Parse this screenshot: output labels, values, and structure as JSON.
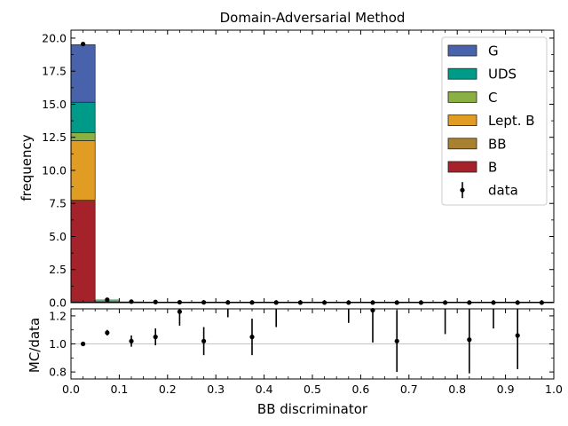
{
  "chart_data": {
    "type": "bar",
    "stacked": true,
    "title": "Domain-Adversarial Method",
    "xlabel": "BB discriminator",
    "ylabel": "frequency",
    "ratio_ylabel": "MC/data",
    "xlim": [
      0.0,
      1.0
    ],
    "ylim": [
      0,
      20.6
    ],
    "ratio_ylim": [
      0.75,
      1.25
    ],
    "grid": false,
    "legend_position": "top-right",
    "bin_edges": [
      0.0,
      0.05,
      0.1,
      0.15,
      0.2,
      0.25,
      0.3,
      0.35,
      0.4,
      0.45,
      0.5,
      0.55,
      0.6,
      0.65,
      0.7,
      0.75,
      0.8,
      0.85,
      0.9,
      0.95,
      1.0
    ],
    "x_ticks": [
      "0.0",
      "0.1",
      "0.2",
      "0.3",
      "0.4",
      "0.5",
      "0.6",
      "0.7",
      "0.8",
      "0.9",
      "1.0"
    ],
    "y_ticks": [
      "0.0",
      "2.5",
      "5.0",
      "7.5",
      "10.0",
      "12.5",
      "15.0",
      "17.5",
      "20.0"
    ],
    "ratio_y_ticks": [
      "0.8",
      "1.0",
      "1.2"
    ],
    "series": [
      {
        "name": "B",
        "color": "#a6222a",
        "values": [
          7.7,
          0.09,
          0.03,
          0.02,
          0.01,
          0.005,
          0.004,
          0.003,
          0.002,
          0.002,
          0.001,
          0.001,
          0.001,
          0.001,
          0.001,
          0.001,
          0.001,
          0.001,
          0.001,
          0.001
        ]
      },
      {
        "name": "BB",
        "color": "#a88231",
        "values": [
          0.05,
          0.01,
          0.005,
          0.004,
          0.003,
          0.002,
          0.002,
          0.001,
          0.001,
          0.001,
          0.001,
          0.001,
          0.001,
          0.001,
          0.001,
          0.001,
          0.001,
          0.001,
          0.001,
          0.001
        ]
      },
      {
        "name": "Lept. B",
        "color": "#e19c24",
        "values": [
          4.5,
          0.05,
          0.02,
          0.012,
          0.008,
          0.004,
          0.003,
          0.002,
          0.002,
          0.001,
          0.001,
          0.001,
          0.001,
          0.001,
          0.001,
          0.001,
          0.001,
          0.001,
          0.001,
          0.001
        ]
      },
      {
        "name": "C",
        "color": "#8ab043",
        "values": [
          0.6,
          0.02,
          0.01,
          0.006,
          0.004,
          0.002,
          0.002,
          0.001,
          0.001,
          0.001,
          0.001,
          0.001,
          0.001,
          0.001,
          0.001,
          0.001,
          0.001,
          0.001,
          0.001,
          0.001
        ]
      },
      {
        "name": "UDS",
        "color": "#009b88",
        "values": [
          2.3,
          0.03,
          0.01,
          0.006,
          0.004,
          0.002,
          0.002,
          0.001,
          0.001,
          0.001,
          0.001,
          0.001,
          0.001,
          0.001,
          0.001,
          0.001,
          0.001,
          0.001,
          0.001,
          0.001
        ]
      },
      {
        "name": "G",
        "color": "#4862ac",
        "values": [
          4.35,
          0.03,
          0.01,
          0.006,
          0.004,
          0.002,
          0.002,
          0.001,
          0.001,
          0.001,
          0.001,
          0.001,
          0.001,
          0.001,
          0.001,
          0.001,
          0.001,
          0.001,
          0.001,
          0.001
        ]
      }
    ],
    "data": {
      "name": "data",
      "x": [
        0.025,
        0.075,
        0.125,
        0.175,
        0.225,
        0.275,
        0.325,
        0.375,
        0.425,
        0.475,
        0.525,
        0.575,
        0.625,
        0.675,
        0.725,
        0.775,
        0.825,
        0.875,
        0.925,
        0.975
      ],
      "y": [
        19.55,
        0.22,
        0.08,
        0.05,
        0.03,
        0.02,
        0.015,
        0.012,
        0.01,
        0.008,
        0.006,
        0.005,
        0.005,
        0.004,
        0.004,
        0.003,
        0.003,
        0.003,
        0.002,
        0.002
      ]
    },
    "ratio": {
      "x": [
        0.025,
        0.075,
        0.125,
        0.175,
        0.225,
        0.275,
        0.325,
        0.375,
        0.425,
        0.475,
        0.525,
        0.575,
        0.625,
        0.675,
        0.725,
        0.775,
        0.825,
        0.875,
        0.925,
        0.975
      ],
      "y": [
        1.0,
        1.08,
        1.02,
        1.05,
        1.23,
        1.02,
        null,
        1.05,
        null,
        null,
        null,
        null,
        1.24,
        1.02,
        null,
        null,
        1.03,
        null,
        1.06,
        null
      ],
      "err_low": [
        0.0,
        0.02,
        0.04,
        0.06,
        0.1,
        0.1,
        null,
        0.13,
        null,
        null,
        null,
        null,
        0.23,
        0.22,
        null,
        null,
        0.24,
        null,
        0.24,
        null
      ],
      "err_high": [
        0.0,
        0.02,
        0.04,
        0.06,
        0.1,
        0.1,
        null,
        0.13,
        null,
        null,
        null,
        null,
        0.23,
        0.22,
        null,
        null,
        0.24,
        null,
        0.24,
        null
      ],
      "segments": [
        {
          "x": 0.325,
          "y0": 1.19,
          "y1": 1.25
        },
        {
          "x": 0.425,
          "y0": 1.12,
          "y1": 1.25
        },
        {
          "x": 0.575,
          "y0": 1.15,
          "y1": 1.25
        },
        {
          "x": 0.775,
          "y0": 1.07,
          "y1": 1.25
        },
        {
          "x": 0.875,
          "y0": 1.11,
          "y1": 1.25
        }
      ]
    }
  }
}
